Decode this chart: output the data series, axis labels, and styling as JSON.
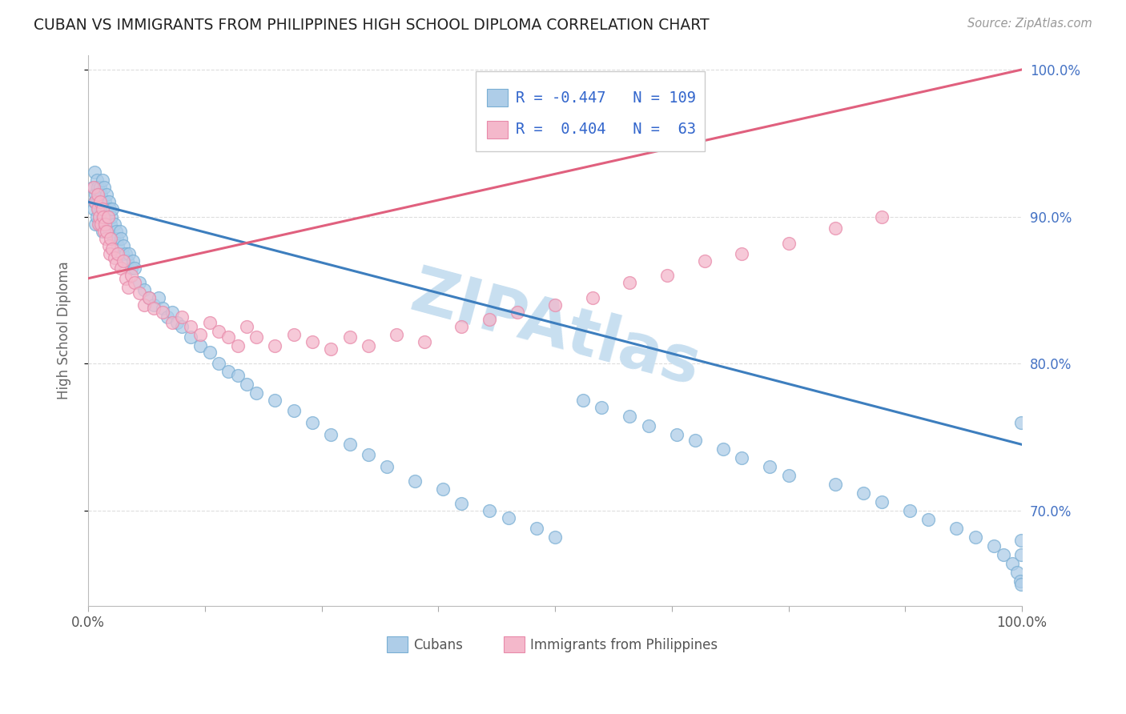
{
  "title": "CUBAN VS IMMIGRANTS FROM PHILIPPINES HIGH SCHOOL DIPLOMA CORRELATION CHART",
  "source": "Source: ZipAtlas.com",
  "ylabel": "High School Diploma",
  "legend_label1": "Cubans",
  "legend_label2": "Immigrants from Philippines",
  "R1": "-0.447",
  "N1": "109",
  "R2": "0.404",
  "N2": "63",
  "blue_color": "#aecde8",
  "blue_edge_color": "#7aafd4",
  "pink_color": "#f4b8cb",
  "pink_edge_color": "#e88aaa",
  "blue_line_color": "#3d7ebe",
  "pink_line_color": "#e0607e",
  "watermark": "ZIPAtlas",
  "watermark_color": "#c8dff0",
  "background_color": "#ffffff",
  "grid_color": "#dddddd",
  "blue_scatter_x": [
    0.005,
    0.006,
    0.007,
    0.007,
    0.008,
    0.008,
    0.009,
    0.009,
    0.01,
    0.01,
    0.011,
    0.011,
    0.012,
    0.012,
    0.013,
    0.013,
    0.014,
    0.014,
    0.015,
    0.015,
    0.015,
    0.016,
    0.017,
    0.017,
    0.018,
    0.018,
    0.019,
    0.02,
    0.02,
    0.021,
    0.022,
    0.022,
    0.023,
    0.024,
    0.025,
    0.026,
    0.027,
    0.028,
    0.03,
    0.031,
    0.032,
    0.034,
    0.035,
    0.037,
    0.038,
    0.04,
    0.042,
    0.044,
    0.046,
    0.048,
    0.05,
    0.055,
    0.06,
    0.065,
    0.07,
    0.075,
    0.08,
    0.085,
    0.09,
    0.095,
    0.1,
    0.11,
    0.12,
    0.13,
    0.14,
    0.15,
    0.16,
    0.17,
    0.18,
    0.2,
    0.22,
    0.24,
    0.26,
    0.28,
    0.3,
    0.32,
    0.35,
    0.38,
    0.4,
    0.43,
    0.45,
    0.48,
    0.5,
    0.53,
    0.55,
    0.58,
    0.6,
    0.63,
    0.65,
    0.68,
    0.7,
    0.73,
    0.75,
    0.8,
    0.83,
    0.85,
    0.88,
    0.9,
    0.93,
    0.95,
    0.97,
    0.98,
    0.99,
    0.995,
    0.998,
    0.999,
    0.999,
    0.999,
    0.999
  ],
  "blue_scatter_y": [
    0.92,
    0.905,
    0.91,
    0.93,
    0.915,
    0.895,
    0.925,
    0.9,
    0.91,
    0.92,
    0.905,
    0.915,
    0.895,
    0.9,
    0.91,
    0.92,
    0.905,
    0.915,
    0.89,
    0.9,
    0.925,
    0.895,
    0.905,
    0.92,
    0.9,
    0.91,
    0.895,
    0.905,
    0.915,
    0.9,
    0.89,
    0.91,
    0.905,
    0.895,
    0.9,
    0.905,
    0.885,
    0.895,
    0.89,
    0.885,
    0.88,
    0.89,
    0.885,
    0.875,
    0.88,
    0.875,
    0.87,
    0.875,
    0.865,
    0.87,
    0.865,
    0.855,
    0.85,
    0.845,
    0.84,
    0.845,
    0.838,
    0.832,
    0.835,
    0.828,
    0.825,
    0.818,
    0.812,
    0.808,
    0.8,
    0.795,
    0.792,
    0.786,
    0.78,
    0.775,
    0.768,
    0.76,
    0.752,
    0.745,
    0.738,
    0.73,
    0.72,
    0.715,
    0.705,
    0.7,
    0.695,
    0.688,
    0.682,
    0.775,
    0.77,
    0.764,
    0.758,
    0.752,
    0.748,
    0.742,
    0.736,
    0.73,
    0.724,
    0.718,
    0.712,
    0.706,
    0.7,
    0.694,
    0.688,
    0.682,
    0.676,
    0.67,
    0.664,
    0.658,
    0.652,
    0.76,
    0.65,
    0.68,
    0.67
  ],
  "pink_scatter_x": [
    0.006,
    0.008,
    0.01,
    0.01,
    0.011,
    0.012,
    0.013,
    0.014,
    0.015,
    0.016,
    0.017,
    0.018,
    0.019,
    0.02,
    0.021,
    0.022,
    0.023,
    0.024,
    0.026,
    0.028,
    0.03,
    0.032,
    0.035,
    0.038,
    0.04,
    0.043,
    0.046,
    0.05,
    0.055,
    0.06,
    0.065,
    0.07,
    0.08,
    0.09,
    0.1,
    0.11,
    0.12,
    0.13,
    0.14,
    0.15,
    0.16,
    0.17,
    0.18,
    0.2,
    0.22,
    0.24,
    0.26,
    0.28,
    0.3,
    0.33,
    0.36,
    0.4,
    0.43,
    0.46,
    0.5,
    0.54,
    0.58,
    0.62,
    0.66,
    0.7,
    0.75,
    0.8,
    0.85
  ],
  "pink_scatter_y": [
    0.92,
    0.91,
    0.905,
    0.915,
    0.895,
    0.9,
    0.91,
    0.895,
    0.905,
    0.9,
    0.89,
    0.895,
    0.885,
    0.89,
    0.9,
    0.88,
    0.875,
    0.885,
    0.878,
    0.872,
    0.868,
    0.875,
    0.865,
    0.87,
    0.858,
    0.852,
    0.86,
    0.855,
    0.848,
    0.84,
    0.845,
    0.838,
    0.835,
    0.828,
    0.832,
    0.825,
    0.82,
    0.828,
    0.822,
    0.818,
    0.812,
    0.825,
    0.818,
    0.812,
    0.82,
    0.815,
    0.81,
    0.818,
    0.812,
    0.82,
    0.815,
    0.825,
    0.83,
    0.835,
    0.84,
    0.845,
    0.855,
    0.86,
    0.87,
    0.875,
    0.882,
    0.892,
    0.9
  ],
  "xlim": [
    0.0,
    1.0
  ],
  "ylim": [
    0.635,
    1.01
  ],
  "yticks": [
    0.7,
    0.8,
    0.9,
    1.0
  ],
  "ytick_labels": [
    "70.0%",
    "80.0%",
    "90.0%",
    "100.0%"
  ],
  "xticks": [
    0.0,
    1.0
  ],
  "xtick_labels": [
    "0.0%",
    "100.0%"
  ],
  "blue_line_x0": 0.0,
  "blue_line_x1": 1.0,
  "blue_line_y0": 0.91,
  "blue_line_y1": 0.745,
  "pink_line_x0": 0.0,
  "pink_line_x1": 1.0,
  "pink_line_y0": 0.858,
  "pink_line_y1": 1.0
}
